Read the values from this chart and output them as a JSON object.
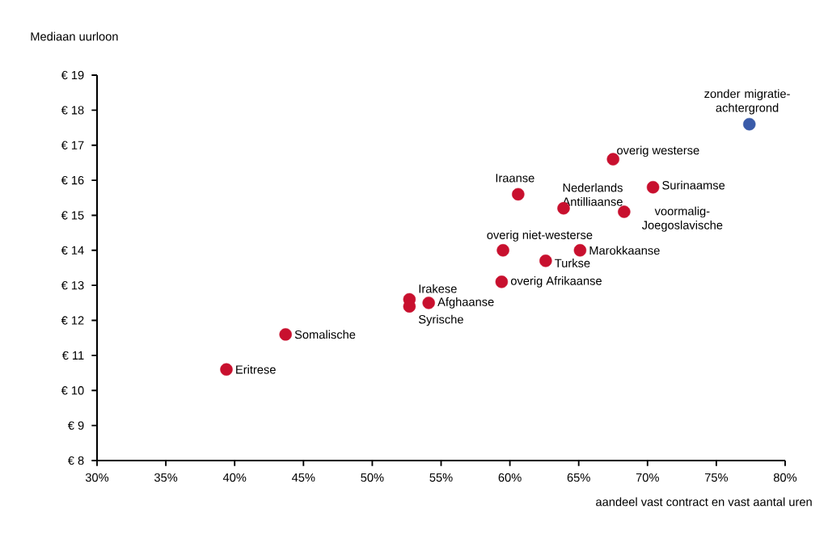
{
  "chart_data": {
    "type": "scatter",
    "ylabel": "Mediaan uurloon",
    "xlabel": "aandeel vast contract en vast aantal uren",
    "xlim": [
      30,
      80
    ],
    "ylim": [
      8,
      19
    ],
    "xticks": [
      {
        "value": 30,
        "label": "30%"
      },
      {
        "value": 35,
        "label": "35%"
      },
      {
        "value": 40,
        "label": "40%"
      },
      {
        "value": 45,
        "label": "45%"
      },
      {
        "value": 50,
        "label": "50%"
      },
      {
        "value": 55,
        "label": "55%"
      },
      {
        "value": 60,
        "label": "60%"
      },
      {
        "value": 65,
        "label": "65%"
      },
      {
        "value": 70,
        "label": "70%"
      },
      {
        "value": 75,
        "label": "75%"
      },
      {
        "value": 80,
        "label": "80%"
      }
    ],
    "yticks": [
      {
        "value": 8,
        "label": "€ 8"
      },
      {
        "value": 9,
        "label": "€ 9"
      },
      {
        "value": 10,
        "label": "€ 10"
      },
      {
        "value": 11,
        "label": "€ 11"
      },
      {
        "value": 12,
        "label": "€ 12"
      },
      {
        "value": 13,
        "label": "€ 13"
      },
      {
        "value": 14,
        "label": "€ 14"
      },
      {
        "value": 15,
        "label": "€ 15"
      },
      {
        "value": 16,
        "label": "€ 16"
      },
      {
        "value": 17,
        "label": "€ 17"
      },
      {
        "value": 18,
        "label": "€ 18"
      },
      {
        "value": 19,
        "label": "€ 19"
      }
    ],
    "marker": "circle",
    "grid": false,
    "series": [
      {
        "color": "#c8102e",
        "x": [
          39.4,
          43.7,
          52.7,
          52.7,
          54.1,
          59.4,
          59.5,
          62.6,
          65.1,
          60.6,
          63.9,
          68.3,
          70.4,
          67.5
        ],
        "values": [
          10.6,
          11.6,
          12.6,
          12.4,
          12.5,
          13.1,
          14.0,
          13.7,
          14.0,
          15.6,
          15.2,
          15.1,
          15.8,
          16.6
        ]
      },
      {
        "color": "#3a5ba9",
        "x": [
          77.4
        ],
        "values": [
          17.6
        ]
      }
    ],
    "annotations": [
      {
        "text": "Eritrese",
        "x": 39.4,
        "y": 10.6
      },
      {
        "text": "Somalische",
        "x": 43.7,
        "y": 11.6
      },
      {
        "text": "Irakese",
        "x": 52.7,
        "y": 12.6
      },
      {
        "text": "Syrische",
        "x": 52.7,
        "y": 12.4
      },
      {
        "text": "Afghaanse",
        "x": 54.1,
        "y": 12.5
      },
      {
        "text": "overig Afrikaanse",
        "x": 59.4,
        "y": 13.1
      },
      {
        "text": "overig niet-westerse",
        "x": 59.5,
        "y": 14.0
      },
      {
        "text": "Turkse",
        "x": 62.6,
        "y": 13.7
      },
      {
        "text": "Marokkaanse",
        "x": 65.1,
        "y": 14.0
      },
      {
        "text": "Iraanse",
        "x": 60.6,
        "y": 15.6
      },
      {
        "text": "Nederlands Antilliaanse",
        "x": 63.9,
        "y": 15.2
      },
      {
        "text": "voormalig-Joegoslavische",
        "x": 68.3,
        "y": 15.1
      },
      {
        "text": "Surinaamse",
        "x": 70.4,
        "y": 15.8
      },
      {
        "text": "overig westerse",
        "x": 67.5,
        "y": 16.6
      },
      {
        "text": "zonder migratie-achtergrond",
        "x": 77.4,
        "y": 17.6
      }
    ]
  }
}
